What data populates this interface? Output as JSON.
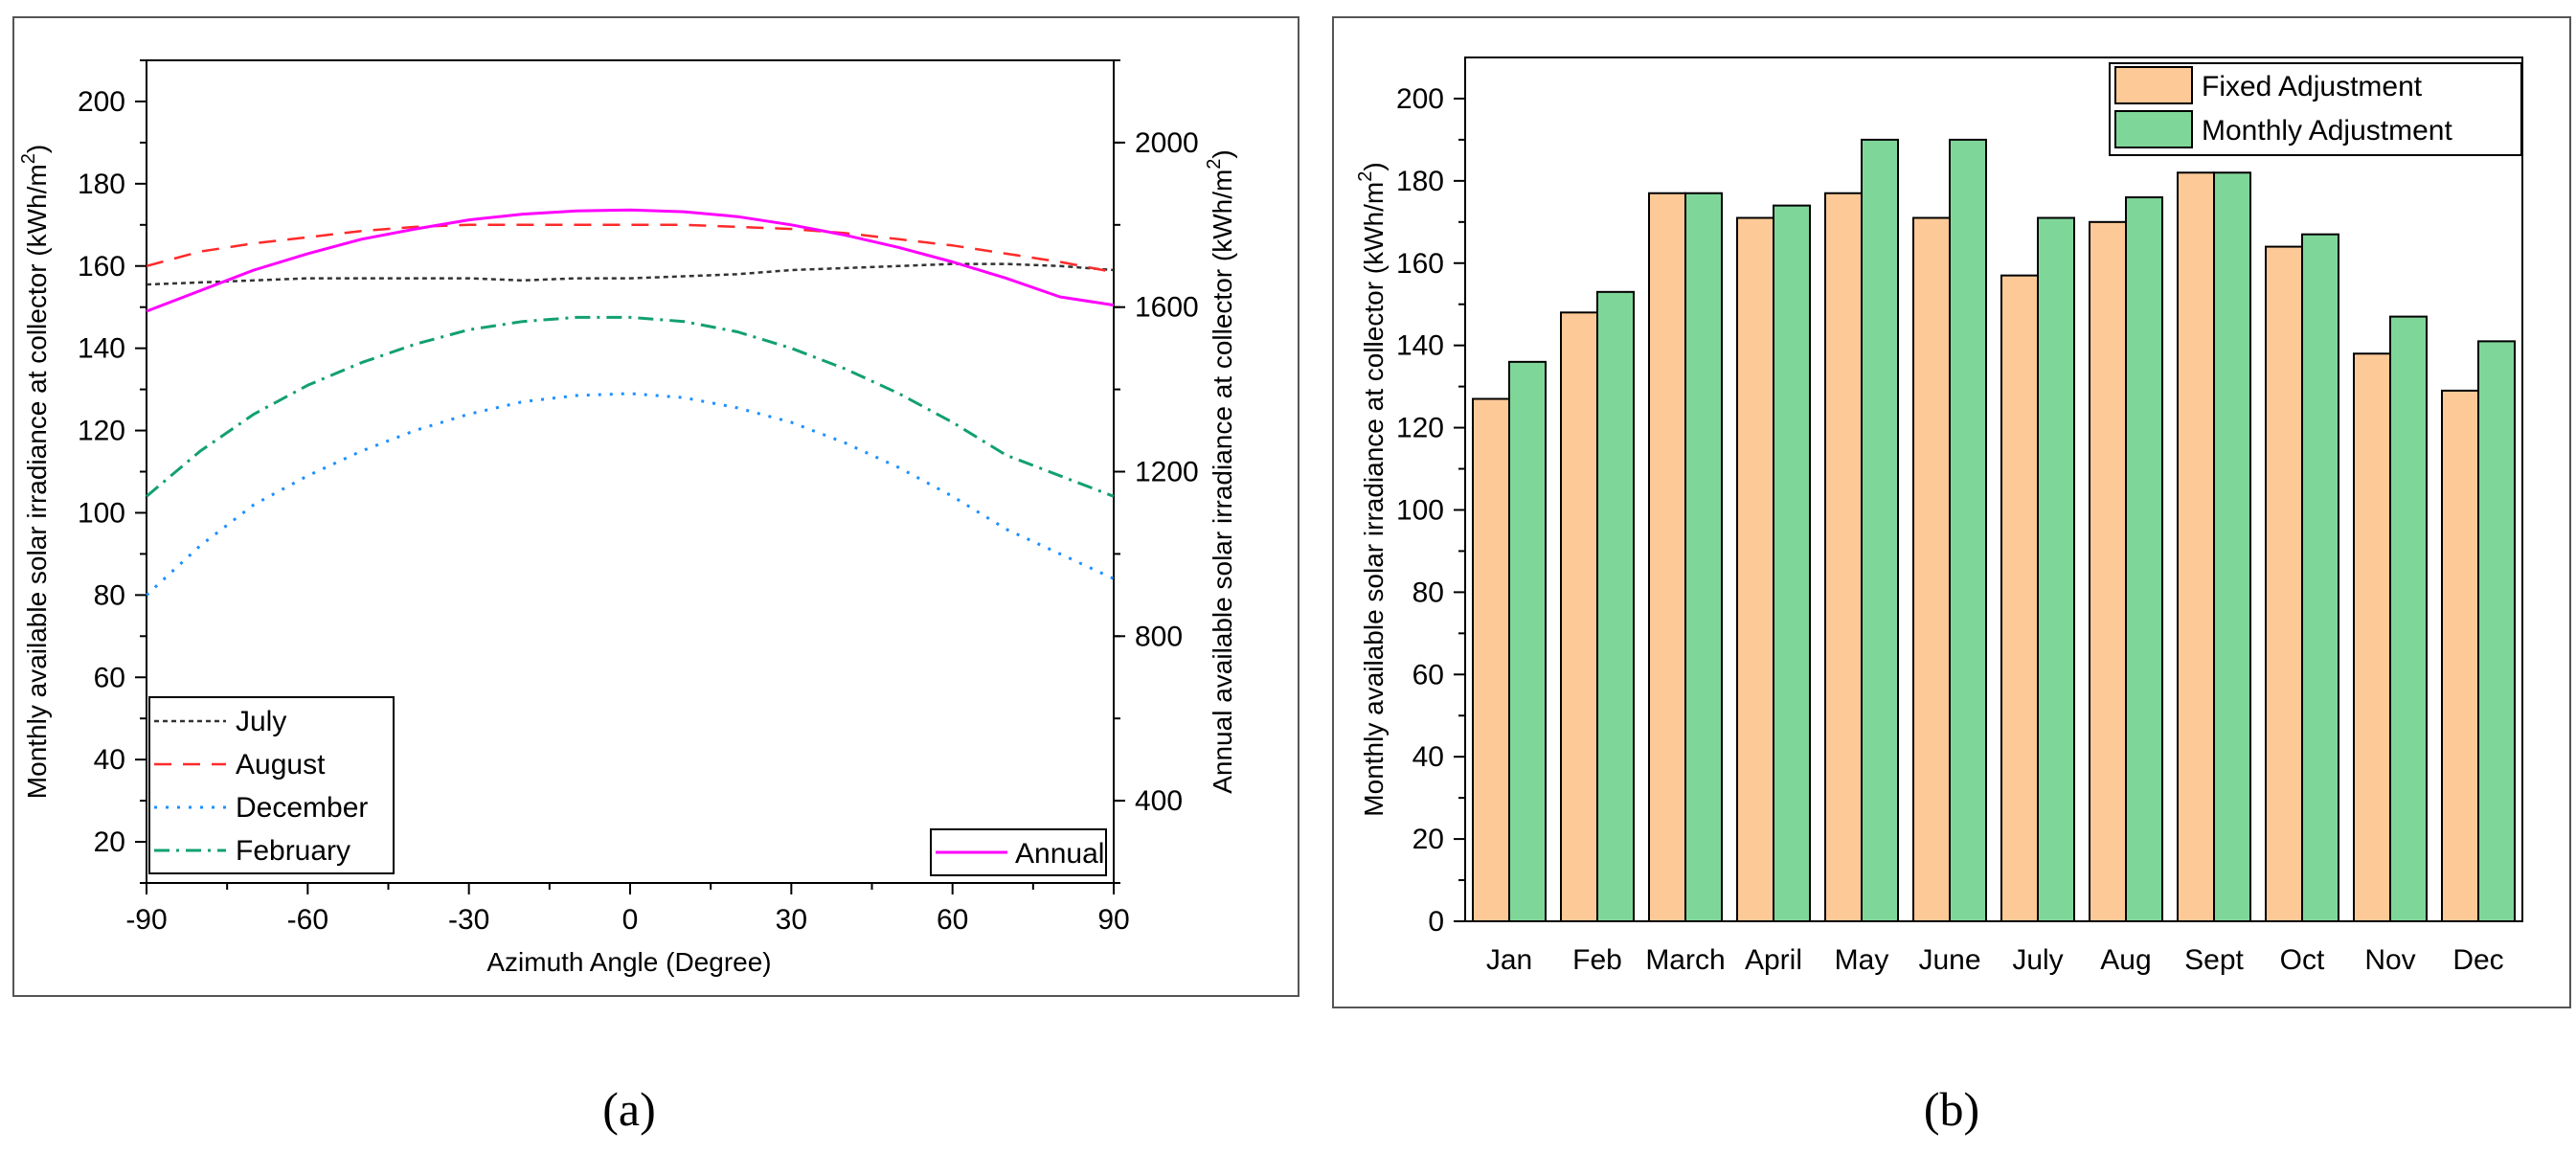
{
  "panel_labels": [
    "(a)",
    "(b)"
  ],
  "colors": {
    "july": "#333333",
    "august": "#ff2a2a",
    "december": "#1e90ff",
    "february": "#12a070",
    "annual": "#ff00ff",
    "fixed_fill": "#fdc997",
    "monthly_fill": "#7fd699",
    "frame": "#000000"
  },
  "chart_data": [
    {
      "type": "line",
      "panel": "a",
      "title": "",
      "xlabel": "Azimuth Angle (Degree)",
      "ylabel": "Monthly available solar irradiance at collector (kWh/m²)",
      "ylabel_right": "Annual available solar irradiance at collector (kWh/m²)",
      "xlim": [
        -90,
        90
      ],
      "ylim": [
        10,
        210
      ],
      "ylim_right": [
        200,
        2200
      ],
      "xticks": [
        -90,
        -60,
        -30,
        0,
        30,
        60,
        90
      ],
      "yticks": [
        20,
        40,
        60,
        80,
        100,
        120,
        140,
        160,
        180,
        200
      ],
      "yticks_right": [
        400,
        800,
        1200,
        1600,
        2000
      ],
      "x": [
        -90,
        -80,
        -70,
        -60,
        -50,
        -40,
        -30,
        -20,
        -10,
        0,
        10,
        20,
        30,
        40,
        50,
        60,
        70,
        80,
        90
      ],
      "series": [
        {
          "name": "July",
          "axis": "left",
          "style": "dotted-dense",
          "color_key": "july",
          "values": [
            155.5,
            156,
            156.5,
            157,
            157,
            157,
            157,
            156.5,
            157,
            157,
            157.5,
            158,
            159,
            159.5,
            160,
            160.5,
            160.5,
            160,
            159
          ]
        },
        {
          "name": "August",
          "axis": "left",
          "style": "dashed",
          "color_key": "august",
          "values": [
            160,
            163.5,
            165.5,
            167,
            168.5,
            169.5,
            170,
            170,
            170,
            170,
            170,
            169.5,
            169,
            168,
            166.5,
            165,
            163,
            161,
            158.5
          ]
        },
        {
          "name": "December",
          "axis": "left",
          "style": "dotted",
          "color_key": "december",
          "values": [
            80,
            92,
            102,
            109,
            115,
            120,
            124,
            127,
            128.5,
            129,
            128,
            125.5,
            122,
            117,
            111,
            104,
            96,
            90,
            84
          ]
        },
        {
          "name": "February",
          "axis": "left",
          "style": "dash-dot",
          "color_key": "february",
          "values": [
            104,
            115,
            124,
            131,
            136.5,
            141,
            144.5,
            146.5,
            147.5,
            147.5,
            146.5,
            144,
            140,
            135,
            129,
            122,
            114,
            109,
            104
          ]
        },
        {
          "name": "Annual",
          "axis": "right",
          "style": "solid",
          "color_key": "annual",
          "values": [
            1590,
            1640,
            1690,
            1730,
            1765,
            1790,
            1812,
            1826,
            1834,
            1836,
            1832,
            1820,
            1800,
            1775,
            1745,
            1710,
            1670,
            1625,
            1605
          ]
        }
      ],
      "legend_left": [
        "July",
        "August",
        "December",
        "February"
      ],
      "legend_right": [
        "Annual"
      ]
    },
    {
      "type": "bar",
      "panel": "b",
      "title": "",
      "xlabel": "",
      "ylabel": "Monthly available solar irradiance at collector (kWh/m²)",
      "ylim": [
        0,
        210
      ],
      "yticks": [
        0,
        20,
        40,
        60,
        80,
        100,
        120,
        140,
        160,
        180,
        200
      ],
      "categories": [
        "Jan",
        "Feb",
        "March",
        "April",
        "May",
        "June",
        "July",
        "Aug",
        "Sept",
        "Oct",
        "Nov",
        "Dec"
      ],
      "series": [
        {
          "name": "Fixed Adjustment",
          "color_key": "fixed_fill",
          "values": [
            127,
            148,
            177,
            171,
            177,
            171,
            157,
            170,
            182,
            164,
            138,
            129
          ]
        },
        {
          "name": "Monthly Adjustment",
          "color_key": "monthly_fill",
          "values": [
            136,
            153,
            177,
            174,
            190,
            190,
            171,
            176,
            182,
            167,
            147,
            141
          ]
        }
      ],
      "legend_position": "top-right"
    }
  ]
}
